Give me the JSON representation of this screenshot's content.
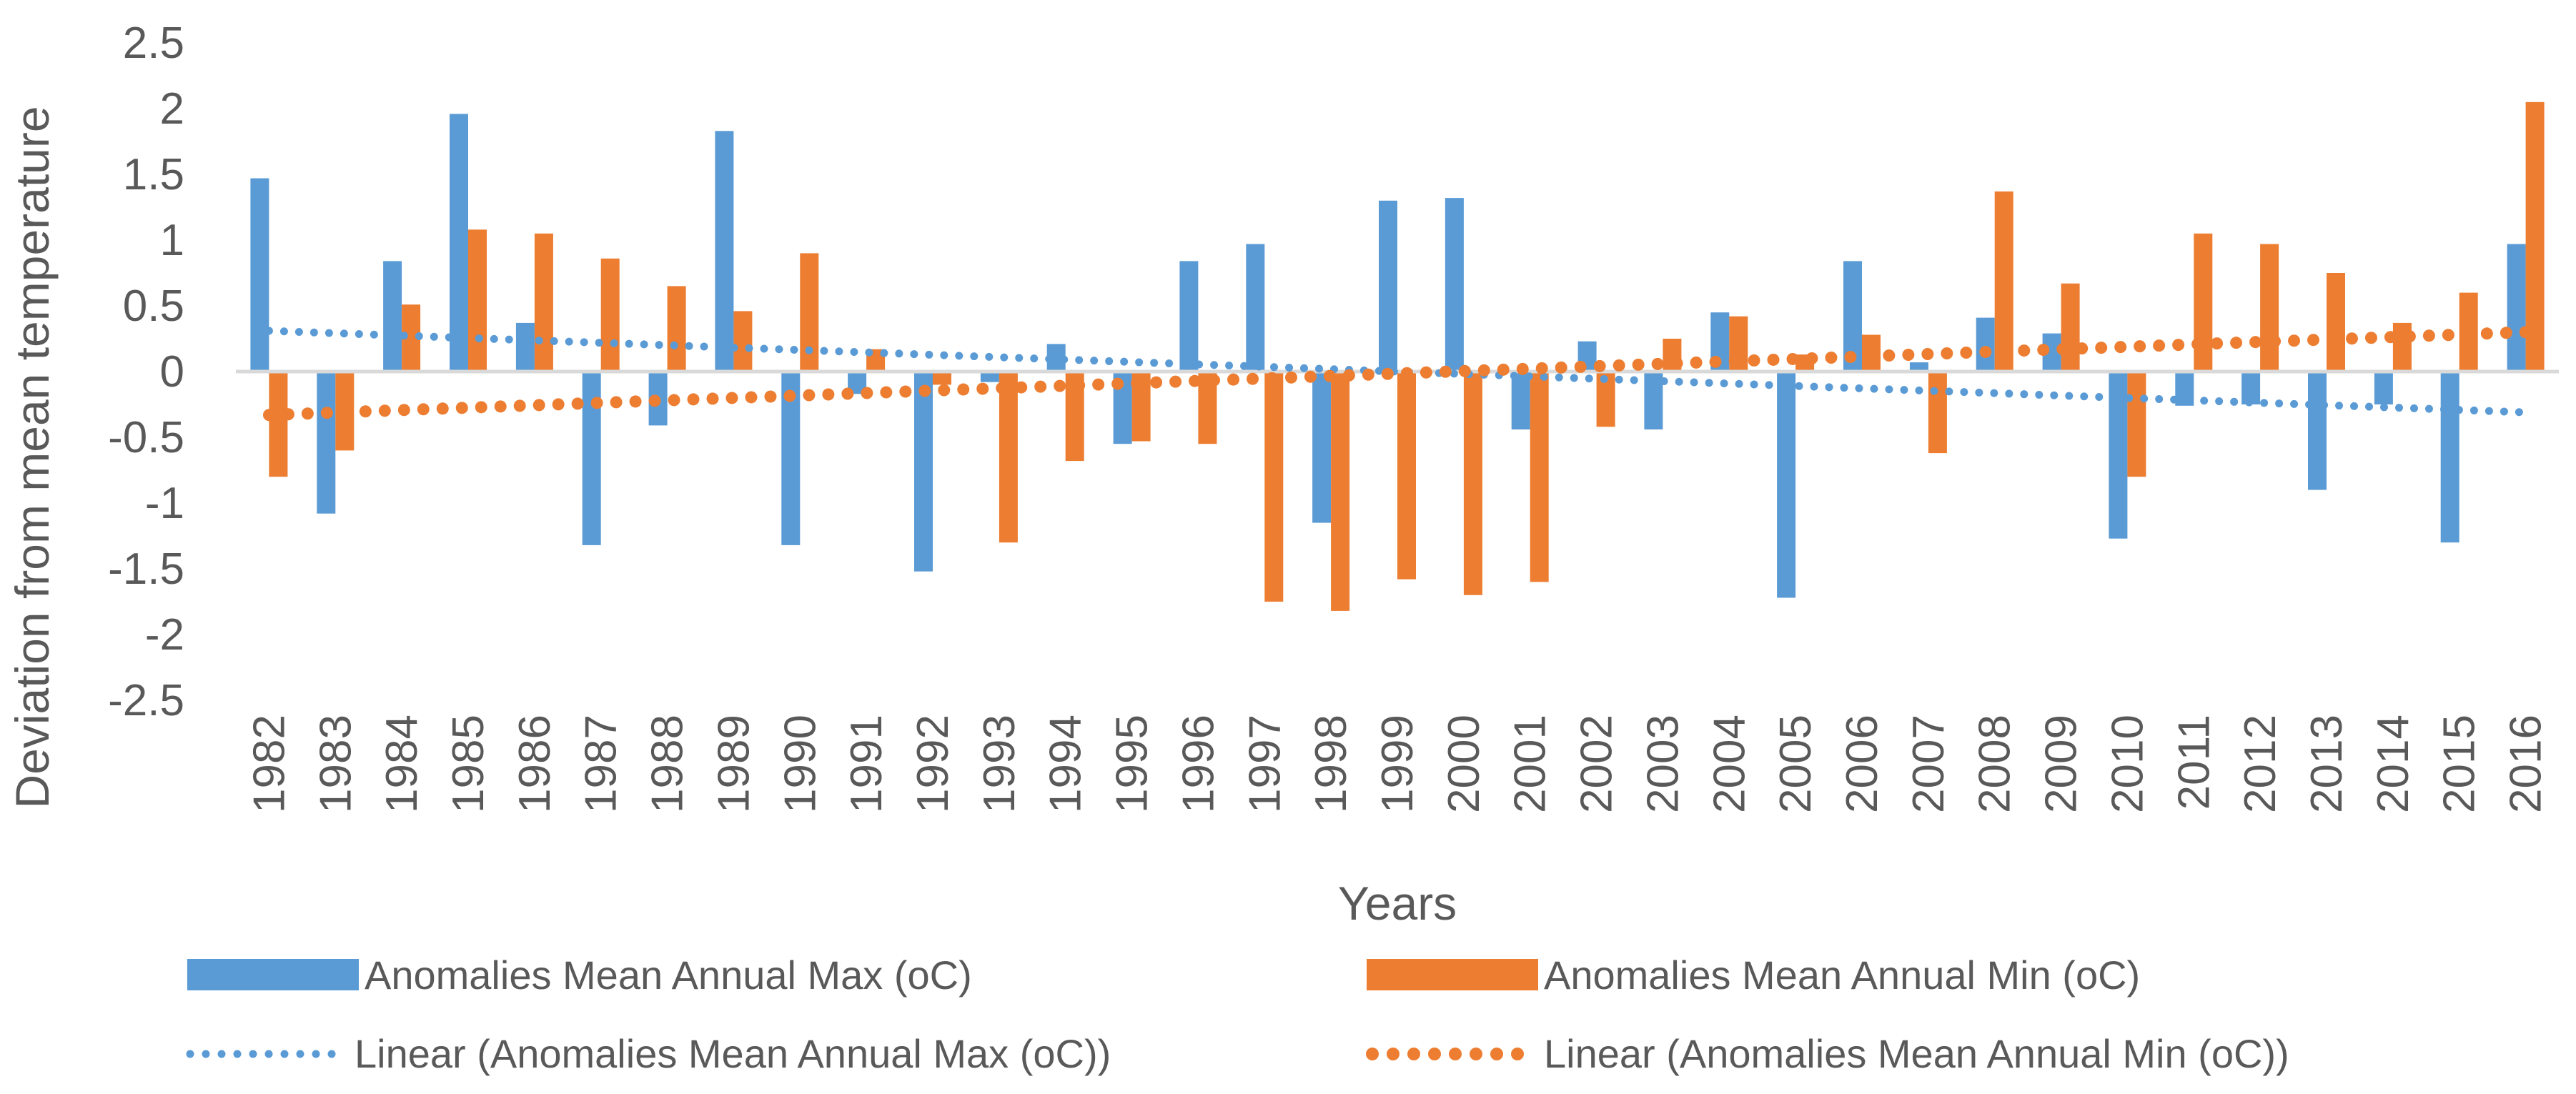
{
  "chart_data": {
    "type": "bar",
    "title": "",
    "xlabel": "Years",
    "ylabel": "Deviation from mean temperature",
    "ylim": [
      -2.5,
      2.5
    ],
    "yticks": [
      2.5,
      2,
      1.5,
      1,
      0.5,
      0,
      -0.5,
      -1,
      -1.5,
      -2,
      -2.5
    ],
    "ytick_labels": [
      "2.5",
      "2",
      "1.5",
      "1",
      "0.5",
      "0",
      "-0.5",
      "-1",
      "-1.5",
      "-2",
      "-2.5"
    ],
    "grid": false,
    "legend_position": "bottom",
    "categories": [
      "1982",
      "1983",
      "1984",
      "1985",
      "1986",
      "1987",
      "1988",
      "1989",
      "1990",
      "1991",
      "1992",
      "1993",
      "1994",
      "1995",
      "1996",
      "1997",
      "1998",
      "1999",
      "2000",
      "2001",
      "2002",
      "2003",
      "2004",
      "2005",
      "2006",
      "2007",
      "2008",
      "2009",
      "2010",
      "2011",
      "2012",
      "2013",
      "2014",
      "2015",
      "2016"
    ],
    "series": [
      {
        "name": "Anomalies Mean Annual Max (oC)",
        "color": "#5B9BD5",
        "values": [
          1.47,
          -1.08,
          0.84,
          1.96,
          0.37,
          -1.32,
          -0.41,
          1.83,
          -1.32,
          -0.17,
          -1.52,
          -0.08,
          0.21,
          -0.55,
          0.84,
          0.97,
          -1.15,
          1.3,
          1.32,
          -0.44,
          0.23,
          -0.44,
          0.45,
          -1.72,
          0.84,
          0.07,
          0.41,
          0.29,
          -1.27,
          -0.26,
          -0.25,
          -0.9,
          -0.25,
          -1.3,
          0.97
        ]
      },
      {
        "name": "Anomalies Mean Annual Min (oC)",
        "color": "#ED7D31",
        "values": [
          -0.8,
          -0.6,
          0.51,
          1.08,
          1.05,
          0.86,
          0.65,
          0.46,
          0.9,
          0.17,
          -0.1,
          -1.3,
          -0.68,
          -0.53,
          -0.55,
          -1.75,
          -1.82,
          -1.58,
          -1.7,
          -1.6,
          -0.42,
          0.25,
          0.42,
          0.13,
          0.28,
          -0.62,
          1.37,
          0.67,
          -0.8,
          1.05,
          0.97,
          0.75,
          0.37,
          0.6,
          2.05
        ]
      }
    ],
    "trendlines": [
      {
        "name": "Linear (Anomalies Mean Annual Max (oC))",
        "color": "#5B9BD5",
        "start": 0.31,
        "end": -0.31
      },
      {
        "name": "Linear (Anomalies Mean Annual Min (oC))",
        "color": "#ED7D31",
        "start": -0.33,
        "end": 0.3
      }
    ]
  }
}
